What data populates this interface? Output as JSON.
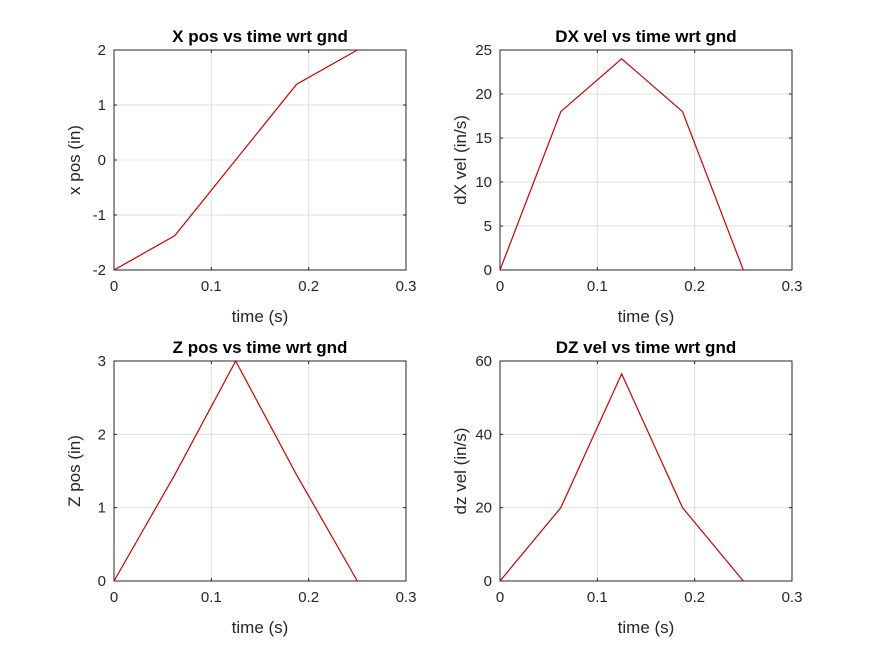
{
  "chart_data": [
    {
      "type": "line",
      "title": "X pos vs time wrt gnd",
      "xlabel": "time (s)",
      "ylabel": "x pos (in)",
      "xlim": [
        0,
        0.3
      ],
      "ylim": [
        -2,
        2
      ],
      "xticks": [
        0,
        0.1,
        0.2,
        0.3
      ],
      "xtick_labels": [
        "0",
        "0.1",
        "0.2",
        "0.3"
      ],
      "yticks": [
        -2,
        -1,
        0,
        1,
        2
      ],
      "ytick_labels": [
        "-2",
        "-1",
        "0",
        "1",
        "2"
      ],
      "grid": true,
      "color": "#cc0000",
      "x": [
        0,
        0.0625,
        0.1875,
        0.25
      ],
      "y": [
        -2,
        -1.375,
        1.375,
        2
      ]
    },
    {
      "type": "line",
      "title": "DX vel vs time wrt gnd",
      "xlabel": "time (s)",
      "ylabel": "dX vel (in/s)",
      "xlim": [
        0,
        0.3
      ],
      "ylim": [
        0,
        25
      ],
      "xticks": [
        0,
        0.1,
        0.2,
        0.3
      ],
      "xtick_labels": [
        "0",
        "0.1",
        "0.2",
        "0.3"
      ],
      "yticks": [
        0,
        5,
        10,
        15,
        20,
        25
      ],
      "ytick_labels": [
        "0",
        "5",
        "10",
        "15",
        "20",
        "25"
      ],
      "grid": true,
      "color": "#cc0000",
      "x": [
        0,
        0.0625,
        0.125,
        0.1875,
        0.25
      ],
      "y": [
        0,
        18,
        24,
        18,
        0
      ]
    },
    {
      "type": "line",
      "title": "Z pos vs time wrt gnd",
      "xlabel": "time (s)",
      "ylabel": "Z pos (in)",
      "xlim": [
        0,
        0.3
      ],
      "ylim": [
        0,
        3
      ],
      "xticks": [
        0,
        0.1,
        0.2,
        0.3
      ],
      "xtick_labels": [
        "0",
        "0.1",
        "0.2",
        "0.3"
      ],
      "yticks": [
        0,
        1,
        2,
        3
      ],
      "ytick_labels": [
        "0",
        "1",
        "2",
        "3"
      ],
      "grid": true,
      "color": "#cc0000",
      "x": [
        0,
        0.0625,
        0.125,
        0.1875,
        0.25
      ],
      "y": [
        0,
        1.45,
        3,
        1.45,
        0
      ]
    },
    {
      "type": "line",
      "title": "DZ vel vs time wrt gnd",
      "xlabel": "time (s)",
      "ylabel": "dz vel (in/s)",
      "xlim": [
        0,
        0.3
      ],
      "ylim": [
        0,
        60
      ],
      "xticks": [
        0,
        0.1,
        0.2,
        0.3
      ],
      "xtick_labels": [
        "0",
        "0.1",
        "0.2",
        "0.3"
      ],
      "yticks": [
        0,
        20,
        40,
        60
      ],
      "ytick_labels": [
        "0",
        "20",
        "40",
        "60"
      ],
      "grid": true,
      "color": "#cc0000",
      "x": [
        0,
        0.0625,
        0.125,
        0.1875,
        0.25
      ],
      "y": [
        0,
        20,
        56.5,
        20,
        0
      ]
    }
  ]
}
